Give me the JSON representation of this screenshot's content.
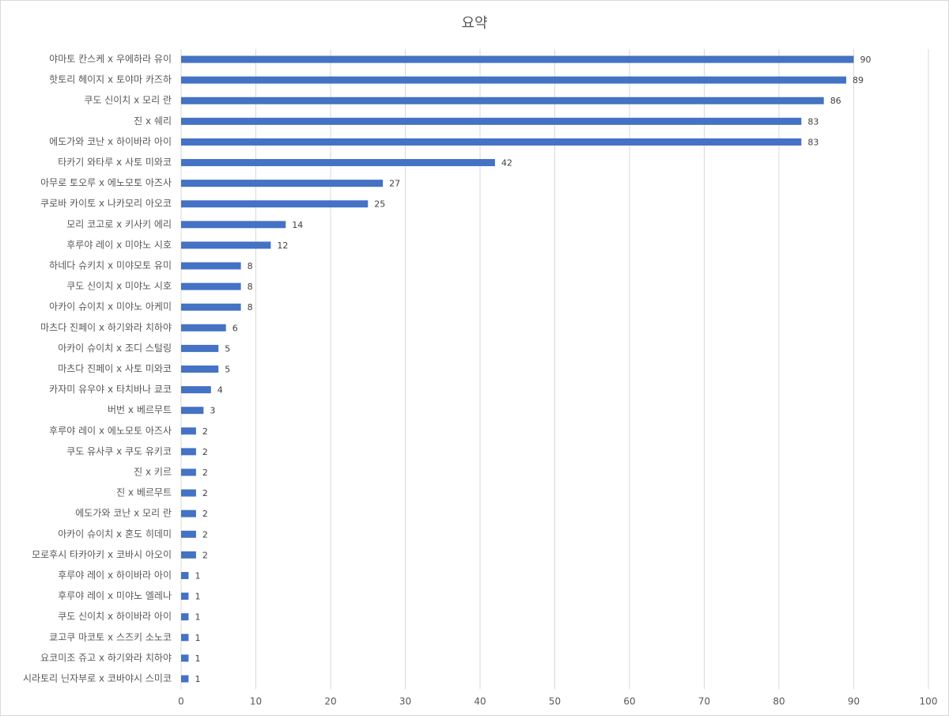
{
  "chart_data": {
    "type": "barh",
    "title": "요약",
    "categories": [
      "야마토 칸스케 x 우에하라 유이",
      "핫토리 헤이지 x 토야마 카즈하",
      "쿠도 신이치 x 모리 란",
      "진 x 쉐리",
      "에도가와 코난 x 하이바라 아이",
      "타카기 와타루 x 사토 미와코",
      "아무로 토오루 x 에노모토 아즈사",
      "쿠로바 카이토 x 나카모리 아오코",
      "모리 코고로 x 키사키 에리",
      "후루야 레이 x 미야노 시호",
      "하네다 슈키치 x 미야모토 유미",
      "쿠도 신이치 x 미야노 시호",
      "아카이 슈이치 x 미야노 아케미",
      "마츠다 진페이 x 하기와라 치하야",
      "아카이 슈이치 x 조디 스털링",
      "마츠다 진페이 x 사토 미와코",
      "카자미 유우야 x 타치바나 쿄코",
      "버번 x 베르무트",
      "후루야 레이 x 에노모토 아즈사",
      "쿠도 유사쿠 x 쿠도 유키코",
      "진 x 키르",
      "진 x 베르무트",
      "에도가와 코난 x 모리 란",
      "아카이 슈이치 x 혼도 히데미",
      "모로후시 타카아키 x 코바시 아오이",
      "후루야 레이 x 하이바라 아이",
      "후루야 레이 x 미야노 엘레나",
      "쿠도 신이치 x 하이바라 아이",
      "쿄고쿠 마코토 x 스즈키 소노코",
      "요코미조 쥬고 x 하기와라 치하야",
      "시라토리 닌자부로 x 코바야시 스미코"
    ],
    "values": [
      90,
      89,
      86,
      83,
      83,
      42,
      27,
      25,
      14,
      12,
      8,
      8,
      8,
      6,
      5,
      5,
      4,
      3,
      2,
      2,
      2,
      2,
      2,
      2,
      2,
      1,
      1,
      1,
      1,
      1,
      1
    ],
    "color": "#4472c4",
    "xlim": [
      0,
      100
    ],
    "xticks": [
      0,
      10,
      20,
      30,
      40,
      50,
      60,
      70,
      80,
      90,
      100
    ],
    "grid": true,
    "data_labels": true
  }
}
